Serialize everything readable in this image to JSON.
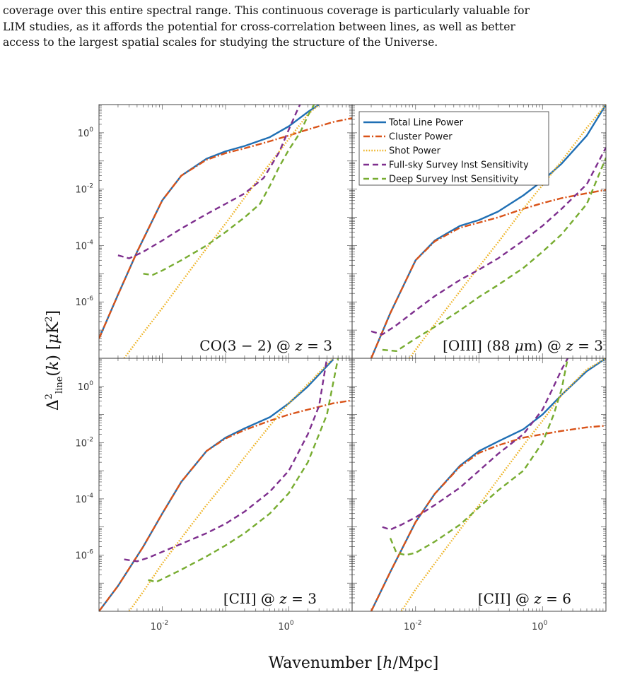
{
  "paragraph": {
    "lines": [
      "coverage over this entire spectral range. This continuous coverage is particularly valuable for",
      "LIM studies, as it affords the potential for cross-correlation between lines, as well as better",
      "access to the largest spatial scales for studying the structure of the Universe."
    ]
  },
  "figure": {
    "xlabel": "Wavenumber [h/Mpc]",
    "ylabel": "Δ²line(k) [μK²]",
    "legend_position": "top-right of upper-right panel",
    "x_ticks": [
      {
        "base": "10",
        "exp": "-2"
      },
      {
        "base": "10",
        "exp": "0"
      }
    ],
    "y_ticks": [
      {
        "base": "10",
        "exp": "0"
      },
      {
        "base": "10",
        "exp": "-2"
      },
      {
        "base": "10",
        "exp": "-4"
      },
      {
        "base": "10",
        "exp": "-6"
      }
    ]
  },
  "chart_data": [
    {
      "type": "line",
      "panel": "CO(3 - 2) @ z = 3",
      "xscale": "log",
      "yscale": "log",
      "xlim": [
        0.001,
        10
      ],
      "ylim": [
        1e-08,
        10
      ],
      "series": [
        {
          "name": "Total Line Power",
          "color": "#1f6fb4",
          "style": "solid",
          "x": [
            0.001,
            0.002,
            0.004,
            0.01,
            0.02,
            0.05,
            0.1,
            0.2,
            0.5,
            1,
            2,
            3
          ],
          "y": [
            5e-08,
            1.8e-06,
            6e-05,
            0.004,
            0.03,
            0.12,
            0.22,
            0.34,
            0.7,
            1.7,
            5.5,
            10
          ]
        },
        {
          "name": "Cluster Power",
          "color": "#d95319",
          "style": "dashdot",
          "x": [
            0.001,
            0.002,
            0.004,
            0.01,
            0.02,
            0.05,
            0.1,
            0.2,
            0.5,
            1,
            2,
            5,
            10
          ],
          "y": [
            5e-08,
            1.8e-06,
            6e-05,
            0.004,
            0.03,
            0.11,
            0.19,
            0.28,
            0.5,
            0.8,
            1.3,
            2.4,
            3.3
          ]
        },
        {
          "name": "Shot Power",
          "color": "#edb120",
          "style": "dotted",
          "x": [
            0.0025,
            0.005,
            0.01,
            0.02,
            0.05,
            0.1,
            0.2,
            0.5,
            1,
            2,
            3
          ],
          "y": [
            1e-08,
            8e-08,
            6e-07,
            5e-06,
            8e-05,
            0.0006,
            0.005,
            0.08,
            0.6,
            4.5,
            10
          ]
        },
        {
          "name": "Full-sky Survey Inst Sensitivity",
          "color": "#7e2f8e",
          "style": "dashed",
          "x": [
            0.002,
            0.003,
            0.005,
            0.01,
            0.02,
            0.05,
            0.1,
            0.2,
            0.4,
            0.7,
            1,
            1.3,
            1.5
          ],
          "y": [
            4.5e-05,
            3.5e-05,
            6e-05,
            0.00015,
            0.0004,
            0.0013,
            0.003,
            0.007,
            0.025,
            0.2,
            1.3,
            5,
            10
          ]
        },
        {
          "name": "Deep Survey Inst Sensitivity",
          "color": "#77ac30",
          "style": "dashed",
          "x": [
            0.005,
            0.007,
            0.01,
            0.02,
            0.05,
            0.1,
            0.2,
            0.35,
            0.5,
            0.7,
            1,
            1.5,
            2,
            2.5
          ],
          "y": [
            1e-05,
            9e-06,
            1.3e-05,
            3e-05,
            0.0001,
            0.0003,
            0.001,
            0.003,
            0.013,
            0.06,
            0.25,
            1,
            4,
            10
          ]
        }
      ]
    },
    {
      "type": "line",
      "panel": "[OIII] (88 μm) @ z = 3",
      "xscale": "log",
      "yscale": "log",
      "xlim": [
        0.001,
        10
      ],
      "ylim": [
        1e-08,
        10
      ],
      "series": [
        {
          "name": "Total Line Power",
          "color": "#1f6fb4",
          "style": "solid",
          "x": [
            0.002,
            0.004,
            0.01,
            0.02,
            0.05,
            0.1,
            0.2,
            0.5,
            1,
            2,
            5,
            10
          ],
          "y": [
            1e-08,
            4e-07,
            3e-05,
            0.00015,
            0.0005,
            0.0008,
            0.0016,
            0.006,
            0.02,
            0.08,
            0.8,
            10
          ]
        },
        {
          "name": "Cluster Power",
          "color": "#d95319",
          "style": "dashdot",
          "x": [
            0.002,
            0.004,
            0.01,
            0.02,
            0.05,
            0.1,
            0.2,
            0.5,
            1,
            2,
            5,
            10
          ],
          "y": [
            1e-08,
            4e-07,
            3e-05,
            0.00014,
            0.00043,
            0.00065,
            0.001,
            0.002,
            0.0032,
            0.0048,
            0.0072,
            0.0095
          ]
        },
        {
          "name": "Shot Power",
          "color": "#edb120",
          "style": "dotted",
          "x": [
            0.008,
            0.01,
            0.02,
            0.05,
            0.1,
            0.2,
            0.5,
            1,
            2,
            5,
            10
          ],
          "y": [
            1e-08,
            2e-08,
            1.6e-07,
            2.4e-06,
            1.8e-05,
            0.00013,
            0.002,
            0.014,
            0.1,
            1.5,
            10
          ]
        },
        {
          "name": "Full-sky Survey Inst Sensitivity",
          "color": "#7e2f8e",
          "style": "dashed",
          "x": [
            0.002,
            0.003,
            0.005,
            0.01,
            0.02,
            0.05,
            0.1,
            0.2,
            0.5,
            1,
            2,
            5,
            10
          ],
          "y": [
            9e-08,
            7e-08,
            1.5e-07,
            5e-07,
            1.6e-06,
            6e-06,
            1.4e-05,
            3.5e-05,
            0.00015,
            0.0005,
            0.002,
            0.015,
            0.3
          ]
        },
        {
          "name": "Deep Survey Inst Sensitivity",
          "color": "#77ac30",
          "style": "dashed",
          "x": [
            0.003,
            0.005,
            0.01,
            0.02,
            0.05,
            0.1,
            0.2,
            0.5,
            1,
            2,
            5,
            10
          ],
          "y": [
            2e-08,
            1.8e-08,
            5e-08,
            1.3e-07,
            5e-07,
            1.5e-06,
            4e-06,
            1.6e-05,
            6e-05,
            0.00025,
            0.003,
            0.13
          ]
        }
      ]
    },
    {
      "type": "line",
      "panel": "[CII] @ z = 3",
      "xscale": "log",
      "yscale": "log",
      "xlim": [
        0.001,
        10
      ],
      "ylim": [
        1e-08,
        10
      ],
      "series": [
        {
          "name": "Total Line Power",
          "color": "#1f6fb4",
          "style": "solid",
          "x": [
            0.001,
            0.002,
            0.005,
            0.01,
            0.02,
            0.05,
            0.1,
            0.2,
            0.5,
            1,
            2,
            5
          ],
          "y": [
            1e-08,
            8e-08,
            2e-06,
            3e-05,
            0.0004,
            0.005,
            0.015,
            0.032,
            0.08,
            0.25,
            1,
            9
          ]
        },
        {
          "name": "Cluster Power",
          "color": "#d95319",
          "style": "dashdot",
          "x": [
            0.001,
            0.002,
            0.005,
            0.01,
            0.02,
            0.05,
            0.1,
            0.2,
            0.5,
            1,
            2,
            5,
            10
          ],
          "y": [
            1e-08,
            8e-08,
            2e-06,
            3e-05,
            0.0004,
            0.005,
            0.014,
            0.028,
            0.06,
            0.1,
            0.15,
            0.25,
            0.32
          ]
        },
        {
          "name": "Shot Power",
          "color": "#edb120",
          "style": "dotted",
          "x": [
            0.003,
            0.005,
            0.01,
            0.02,
            0.05,
            0.1,
            0.2,
            0.5,
            1,
            2,
            5
          ],
          "y": [
            1e-08,
            5e-08,
            5e-07,
            4e-06,
            6e-05,
            0.0004,
            0.003,
            0.04,
            0.25,
            1.2,
            10
          ]
        },
        {
          "name": "Full-sky Survey Inst Sensitivity",
          "color": "#7e2f8e",
          "style": "dashed",
          "x": [
            0.0025,
            0.004,
            0.006,
            0.01,
            0.02,
            0.05,
            0.1,
            0.2,
            0.5,
            1,
            2,
            3,
            4
          ],
          "y": [
            7e-07,
            6e-07,
            8e-07,
            1.3e-06,
            2.5e-06,
            6e-06,
            1.3e-05,
            3.5e-05,
            0.00018,
            0.001,
            0.02,
            0.2,
            10
          ]
        },
        {
          "name": "Deep Survey Inst Sensitivity",
          "color": "#77ac30",
          "style": "dashed",
          "x": [
            0.006,
            0.008,
            0.01,
            0.02,
            0.05,
            0.1,
            0.2,
            0.5,
            1,
            2,
            4,
            6
          ],
          "y": [
            1.3e-07,
            1.1e-07,
            1.4e-07,
            3e-07,
            9e-07,
            2.2e-06,
            6e-06,
            3e-05,
            0.00016,
            0.002,
            0.1,
            10
          ]
        }
      ]
    },
    {
      "type": "line",
      "panel": "[CII] @ z = 6",
      "xscale": "log",
      "yscale": "log",
      "xlim": [
        0.001,
        10
      ],
      "ylim": [
        1e-08,
        10
      ],
      "series": [
        {
          "name": "Total Line Power",
          "color": "#1f6fb4",
          "style": "solid",
          "x": [
            0.002,
            0.004,
            0.01,
            0.02,
            0.05,
            0.1,
            0.2,
            0.5,
            1,
            2,
            5,
            10
          ],
          "y": [
            1e-08,
            2.5e-07,
            1.5e-05,
            0.00015,
            0.0015,
            0.005,
            0.011,
            0.03,
            0.1,
            0.5,
            3.5,
            10
          ]
        },
        {
          "name": "Cluster Power",
          "color": "#d95319",
          "style": "dashdot",
          "x": [
            0.002,
            0.004,
            0.01,
            0.02,
            0.05,
            0.1,
            0.2,
            0.5,
            1,
            2,
            5,
            10
          ],
          "y": [
            1e-08,
            2.5e-07,
            1.5e-05,
            0.00015,
            0.0014,
            0.0043,
            0.008,
            0.015,
            0.02,
            0.026,
            0.035,
            0.04
          ]
        },
        {
          "name": "Shot Power",
          "color": "#edb120",
          "style": "dotted",
          "x": [
            0.006,
            0.01,
            0.02,
            0.05,
            0.1,
            0.2,
            0.5,
            1,
            2,
            5,
            10
          ],
          "y": [
            1e-08,
            6e-08,
            5e-07,
            8e-06,
            6e-05,
            0.0005,
            0.008,
            0.06,
            0.5,
            4,
            10
          ]
        },
        {
          "name": "Full-sky Survey Inst Sensitivity",
          "color": "#7e2f8e",
          "style": "dashed",
          "x": [
            0.003,
            0.004,
            0.006,
            0.01,
            0.02,
            0.05,
            0.1,
            0.2,
            0.5,
            1,
            1.5,
            2,
            2.5
          ],
          "y": [
            1e-05,
            8e-06,
            1.2e-05,
            2.2e-05,
            6e-05,
            0.00025,
            0.001,
            0.004,
            0.02,
            0.15,
            1,
            4,
            10
          ]
        },
        {
          "name": "Deep Survey Inst Sensitivity",
          "color": "#77ac30",
          "style": "dashed",
          "x": [
            0.004,
            0.005,
            0.007,
            0.01,
            0.02,
            0.05,
            0.1,
            0.2,
            0.5,
            1,
            1.5,
            2,
            2.5
          ],
          "y": [
            4e-06,
            1.2e-06,
            1e-06,
            1.2e-06,
            3e-06,
            1.2e-05,
            5e-05,
            0.0002,
            0.001,
            0.01,
            0.1,
            0.8,
            10
          ]
        }
      ]
    }
  ]
}
